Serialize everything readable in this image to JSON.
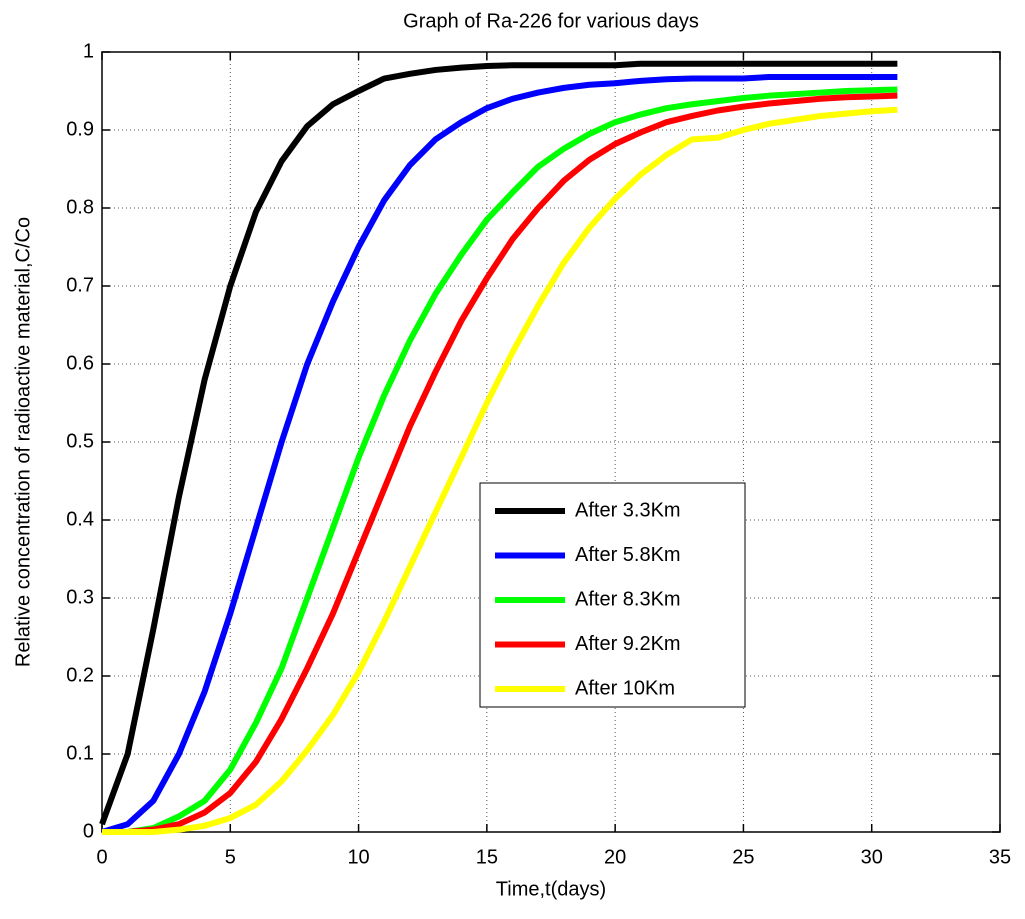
{
  "chart_data": {
    "type": "line",
    "title": "Graph of Ra-226 for various days",
    "x_label": "Time,t(days)",
    "y_label": "Relative concentration of radioactive material,C/Co",
    "x": [
      0,
      1,
      2,
      3,
      4,
      5,
      6,
      7,
      8,
      9,
      10,
      11,
      12,
      13,
      14,
      15,
      16,
      17,
      18,
      19,
      20,
      21,
      22,
      23,
      24,
      25,
      26,
      27,
      28,
      29,
      30,
      31
    ],
    "series": [
      {
        "name": "After 3.3Km",
        "color": "#000000",
        "values": [
          0.01,
          0.1,
          0.26,
          0.43,
          0.58,
          0.7,
          0.795,
          0.86,
          0.905,
          0.933,
          0.95,
          0.966,
          0.972,
          0.977,
          0.98,
          0.982,
          0.983,
          0.983,
          0.983,
          0.983,
          0.983,
          0.985,
          0.985,
          0.985,
          0.985,
          0.985,
          0.985,
          0.985,
          0.985,
          0.985,
          0.985,
          0.985
        ]
      },
      {
        "name": "After 5.8Km",
        "color": "#0000ff",
        "values": [
          0,
          0.01,
          0.04,
          0.1,
          0.18,
          0.28,
          0.39,
          0.5,
          0.6,
          0.68,
          0.75,
          0.81,
          0.855,
          0.888,
          0.91,
          0.928,
          0.94,
          0.948,
          0.954,
          0.958,
          0.96,
          0.963,
          0.965,
          0.966,
          0.966,
          0.966,
          0.968,
          0.968,
          0.968,
          0.968,
          0.968,
          0.968
        ]
      },
      {
        "name": "After 8.3Km",
        "color": "#00ff00",
        "values": [
          0,
          0,
          0.005,
          0.02,
          0.04,
          0.08,
          0.14,
          0.21,
          0.3,
          0.39,
          0.48,
          0.56,
          0.63,
          0.69,
          0.74,
          0.785,
          0.82,
          0.853,
          0.876,
          0.895,
          0.91,
          0.92,
          0.928,
          0.933,
          0.937,
          0.941,
          0.944,
          0.946,
          0.948,
          0.95,
          0.951,
          0.952
        ]
      },
      {
        "name": "After 9.2Km",
        "color": "#ff0000",
        "values": [
          0,
          0,
          0.003,
          0.01,
          0.025,
          0.05,
          0.09,
          0.145,
          0.21,
          0.28,
          0.36,
          0.44,
          0.52,
          0.59,
          0.655,
          0.71,
          0.76,
          0.8,
          0.835,
          0.862,
          0.882,
          0.897,
          0.91,
          0.918,
          0.925,
          0.93,
          0.934,
          0.937,
          0.94,
          0.942,
          0.943,
          0.944
        ]
      },
      {
        "name": "After 10Km",
        "color": "#ffff00",
        "values": [
          0,
          0,
          0,
          0.003,
          0.008,
          0.018,
          0.035,
          0.065,
          0.105,
          0.15,
          0.205,
          0.27,
          0.34,
          0.41,
          0.48,
          0.55,
          0.615,
          0.675,
          0.73,
          0.775,
          0.812,
          0.843,
          0.868,
          0.888,
          0.89,
          0.9,
          0.908,
          0.913,
          0.918,
          0.921,
          0.924,
          0.926
        ]
      }
    ],
    "xlim": [
      0,
      35
    ],
    "xticks": [
      0,
      5,
      10,
      15,
      20,
      25,
      30,
      35
    ],
    "ylim": [
      0,
      1
    ],
    "yticks": [
      0,
      0.1,
      0.2,
      0.3,
      0.4,
      0.5,
      0.6,
      0.7,
      0.8,
      0.9,
      1
    ],
    "grid": true,
    "legend": "center"
  }
}
